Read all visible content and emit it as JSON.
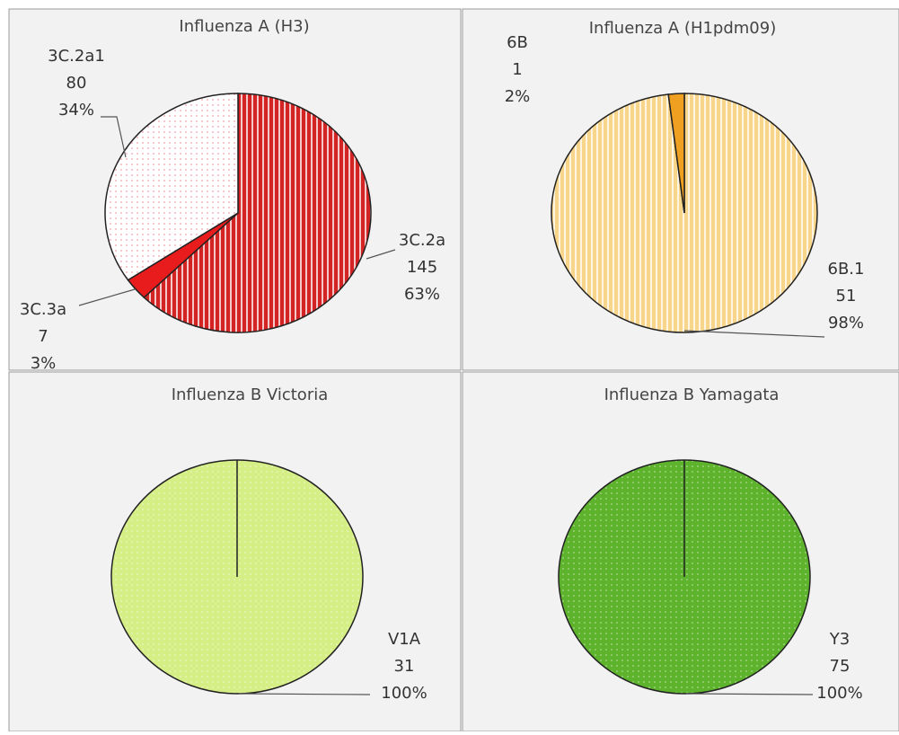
{
  "chart_data": [
    {
      "type": "pie",
      "title": "Influenza A (H3)",
      "categories": [
        "3C.2a",
        "3C.3a",
        "3C.2a1"
      ],
      "values": [
        145,
        7,
        80
      ],
      "percent_labels": [
        "63%",
        "3%",
        "34%"
      ],
      "colors": [
        "#d42323",
        "#e81c1c",
        "#f4b8c0"
      ]
    },
    {
      "type": "pie",
      "title": "Influenza A (H1pdm09)",
      "categories": [
        "6B.1",
        "6B"
      ],
      "values": [
        51,
        1
      ],
      "percent_labels": [
        "98%",
        "2%"
      ],
      "colors": [
        "#f7d58a",
        "#f0a020"
      ]
    },
    {
      "type": "pie",
      "title": "Influenza B Victoria",
      "categories": [
        "V1A"
      ],
      "values": [
        31
      ],
      "percent_labels": [
        "100%"
      ],
      "colors": [
        "#d5ee86"
      ]
    },
    {
      "type": "pie",
      "title": "Influenza B Yamagata",
      "categories": [
        "Y3"
      ],
      "values": [
        75
      ],
      "percent_labels": [
        "100%"
      ],
      "colors": [
        "#5db42c"
      ]
    }
  ]
}
